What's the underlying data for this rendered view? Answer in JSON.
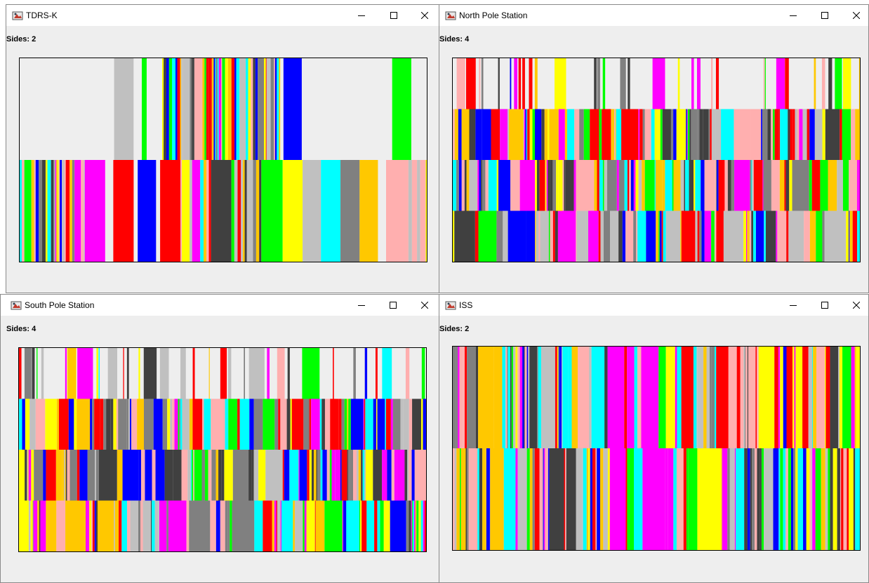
{
  "palette": [
    "#ff0000",
    "#0000ff",
    "#00ff00",
    "#ffff00",
    "#ff00ff",
    "#00ffff",
    "#ffc800",
    "#ffafaf",
    "#808080",
    "#404040",
    "#c0c0c0",
    "#ffffff"
  ],
  "windows": [
    {
      "title": "TDRS-K",
      "sides_text": "Sides: 2",
      "sides": 2,
      "top_band": [
        {
          "start": 0.0,
          "end": 0.232,
          "color": "#eeeeee"
        },
        {
          "start": 0.232,
          "end": 0.28,
          "color": "#c0c0c0"
        },
        {
          "start": 0.28,
          "end": 0.3,
          "color": "#eeeeee"
        },
        {
          "start": 0.3,
          "end": 0.312,
          "color": "#00ff00"
        },
        {
          "start": 0.312,
          "end": 0.35,
          "color": "#eeeeee"
        },
        {
          "start": 0.35,
          "end": 0.48,
          "color": "mixed"
        },
        {
          "start": 0.48,
          "end": 0.6,
          "color": "mixed"
        },
        {
          "start": 0.6,
          "end": 0.64,
          "color": "mixed"
        },
        {
          "start": 0.648,
          "end": 0.693,
          "color": "#0000ff"
        },
        {
          "start": 0.693,
          "end": 0.915,
          "color": "#eeeeee"
        },
        {
          "start": 0.915,
          "end": 0.962,
          "color": "#00ff00"
        },
        {
          "start": 0.962,
          "end": 1.0,
          "color": "#eeeeee"
        }
      ],
      "bottom_band_bars": [
        {
          "start": 0.0,
          "end": 0.16,
          "color": "mixed"
        },
        {
          "start": 0.16,
          "end": 0.21,
          "color": "#ff00ff"
        },
        {
          "start": 0.23,
          "end": 0.28,
          "color": "#ff0000"
        },
        {
          "start": 0.29,
          "end": 0.335,
          "color": "#0000ff"
        },
        {
          "start": 0.345,
          "end": 0.395,
          "color": "#ff0000"
        },
        {
          "start": 0.395,
          "end": 0.47,
          "color": "mixed"
        },
        {
          "start": 0.47,
          "end": 0.52,
          "color": "#404040"
        },
        {
          "start": 0.52,
          "end": 0.6,
          "color": "mixed"
        },
        {
          "start": 0.6,
          "end": 0.646,
          "color": "#00ff00"
        },
        {
          "start": 0.646,
          "end": 0.695,
          "color": "#ffff00"
        },
        {
          "start": 0.695,
          "end": 0.74,
          "color": "#c0c0c0"
        },
        {
          "start": 0.74,
          "end": 0.788,
          "color": "#00ffff"
        },
        {
          "start": 0.788,
          "end": 0.835,
          "color": "#808080"
        },
        {
          "start": 0.835,
          "end": 0.88,
          "color": "#ffc800"
        },
        {
          "start": 0.9,
          "end": 0.955,
          "color": "#ffafaf"
        },
        {
          "start": 0.955,
          "end": 1.0,
          "color": "mixed"
        }
      ],
      "seed": 11
    },
    {
      "title": "North Pole Station",
      "sides_text": "Sides: 4",
      "sides": 4,
      "seed": 23
    },
    {
      "title": "South Pole Station",
      "sides_text": "Sides: 4",
      "sides": 4,
      "seed": 37
    },
    {
      "title": "ISS",
      "sides_text": "Sides: 2",
      "sides": 2,
      "seed": 51
    }
  ]
}
